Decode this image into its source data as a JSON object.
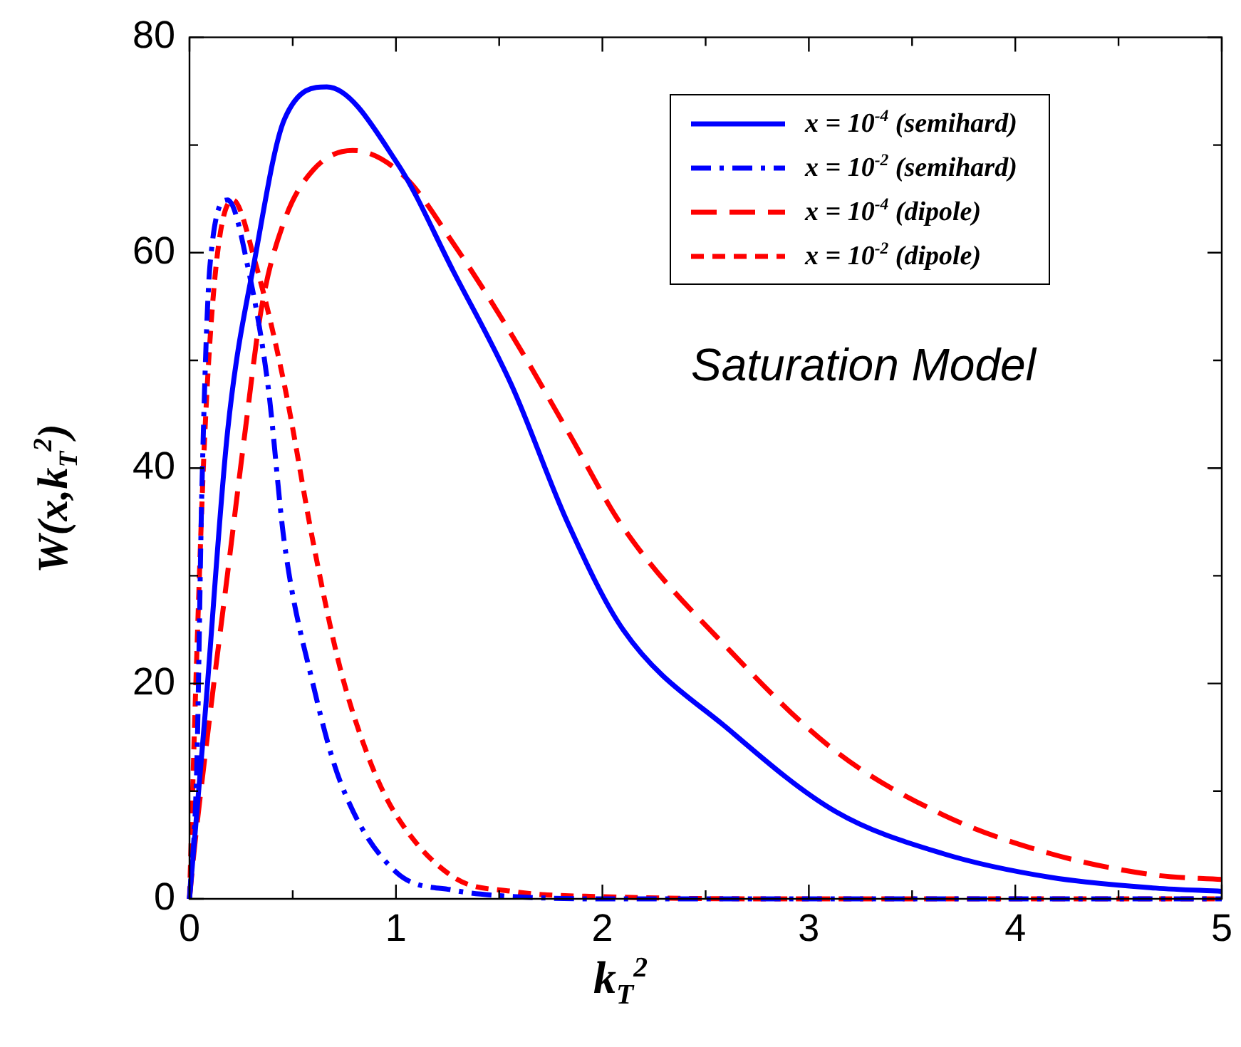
{
  "chart_data": {
    "type": "line",
    "annotations": [
      "Saturation Model"
    ],
    "xlabel": "k$_{T}$$^{2}$",
    "ylabel": "W(x,k$_{T}$$^{2}$)",
    "xlim": [
      0,
      5
    ],
    "ylim": [
      0,
      80
    ],
    "xticks": [
      0,
      {
        "value": 0.5,
        "label": null
      },
      1,
      {
        "value": 1.5,
        "label": null
      },
      2,
      {
        "value": 2.5,
        "label": null
      },
      3,
      {
        "value": 3.5,
        "label": null
      },
      4,
      {
        "value": 4.5,
        "label": null
      },
      5
    ],
    "yticks": [
      0,
      {
        "value": 10,
        "label": null
      },
      20,
      {
        "value": 30,
        "label": null
      },
      40,
      {
        "value": 50,
        "label": null
      },
      60,
      {
        "value": 70,
        "label": null
      },
      80
    ],
    "grid": false,
    "legend": "top right",
    "marker": "none",
    "series": [
      {
        "name": "x = 10$^{-4}$ (semihard)",
        "color": "#0000ff",
        "line_style": "solid",
        "x": [
          0,
          0.075,
          0.185,
          0.32,
          0.46,
          0.665,
          1.01,
          1.28,
          1.56,
          1.83,
          2.1,
          2.62,
          3.13,
          3.65,
          4.17,
          4.68,
          5
        ],
        "values": [
          0,
          17,
          43.5,
          59.8,
          72.4,
          75.4,
          68.2,
          58.2,
          47.7,
          35,
          25,
          15.6,
          8.1,
          4.2,
          2,
          1,
          0.7
        ]
      },
      {
        "name": "x = 10$^{-2}$ (semihard)",
        "color": "#0000ff",
        "line_style": "dashdot",
        "x": [
          0,
          0.035,
          0.06,
          0.1,
          0.185,
          0.29,
          0.38,
          0.46,
          0.6,
          0.73,
          1.0,
          1.28,
          1.5,
          2,
          3,
          4,
          5
        ],
        "values": [
          0,
          12,
          38,
          59,
          64.9,
          58,
          47.7,
          33,
          19.8,
          10.9,
          2.5,
          0.8,
          0.3,
          0,
          0,
          0,
          0
        ]
      },
      {
        "name": "x = 10$^{-4}$ (dipole)",
        "color": "#ff0000",
        "line_style": "dashed",
        "x": [
          0,
          0.02,
          0.1,
          0.185,
          0.27,
          0.35,
          0.46,
          0.6,
          0.79,
          1.04,
          1.28,
          1.56,
          1.83,
          2.1,
          2.62,
          3.13,
          3.65,
          4.17,
          4.68,
          5
        ],
        "values": [
          0,
          4,
          17.2,
          30.3,
          43.5,
          55,
          63,
          67.7,
          69.5,
          67.1,
          60.8,
          52.4,
          43.5,
          34.5,
          23,
          13.7,
          7.8,
          4.2,
          2.2,
          1.8
        ]
      },
      {
        "name": "x = 10$^{-2}$ (dipole)",
        "color": "#ff0000",
        "line_style": "dotted",
        "x": [
          0,
          0.035,
          0.075,
          0.13,
          0.21,
          0.32,
          0.46,
          0.6,
          0.73,
          0.87,
          1.0,
          1.28,
          1.56,
          2,
          3,
          4,
          5
        ],
        "values": [
          0,
          22.5,
          43.5,
          59,
          64.9,
          59,
          47.7,
          33,
          21.4,
          13,
          7.8,
          2,
          0.7,
          0.2,
          0,
          0,
          0
        ]
      }
    ]
  }
}
